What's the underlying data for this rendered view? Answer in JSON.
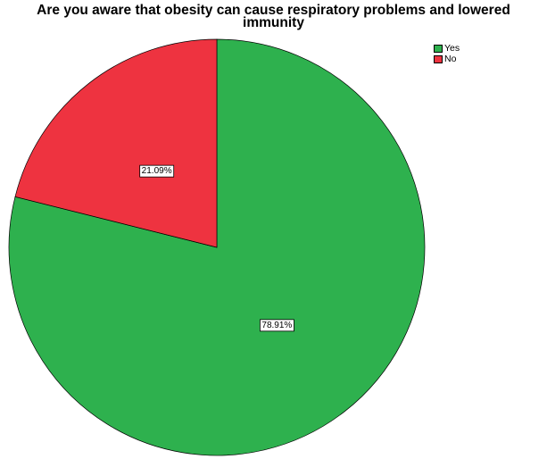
{
  "chart_data": {
    "type": "pie",
    "title": "Are you aware that obesity can cause respiratory problems and lowered immunity",
    "slices": [
      {
        "label": "Yes",
        "value": 78.91,
        "display": "78.91%",
        "color": "#2eb14e"
      },
      {
        "label": "No",
        "value": 21.09,
        "display": "21.09%",
        "color": "#ee3340"
      }
    ],
    "legend_position": "top-right",
    "start_angle": "12 o'clock",
    "direction": "clockwise (Yes first)"
  }
}
